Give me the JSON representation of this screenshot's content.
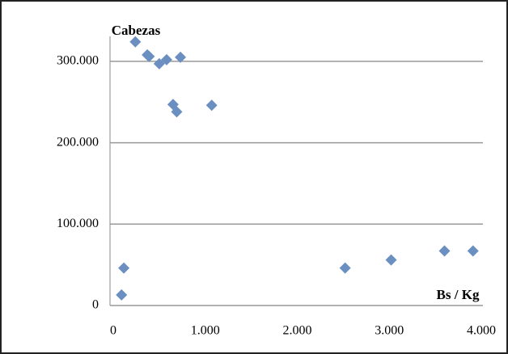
{
  "chart_data": {
    "type": "scatter",
    "x_label": "Bs / Kg",
    "y_label": "Cabezas",
    "series": [
      {
        "name": "Cabezas",
        "color": "#6a8fc0",
        "x": [
          90,
          115,
          240,
          370,
          390,
          500,
          580,
          730,
          650,
          690,
          1070,
          2520,
          3020,
          3600,
          3910
        ],
        "values": [
          13000,
          46000,
          324000,
          308000,
          306000,
          297000,
          302000,
          305000,
          247000,
          238000,
          246000,
          46000,
          56000,
          67000,
          67000
        ]
      }
    ],
    "xlim": [
      0,
      4000
    ],
    "xticks": [
      0,
      {
        "value": 1000,
        "label": "1.000"
      },
      {
        "value": 2000,
        "label": "2.000"
      },
      {
        "value": 3000,
        "label": "3.000"
      },
      {
        "value": 4000,
        "label": "4.000"
      }
    ],
    "ylim": [
      0,
      330000
    ],
    "yticks": [
      0,
      {
        "value": 100000,
        "label": "100.000"
      },
      {
        "value": 200000,
        "label": "200.000"
      },
      {
        "value": 300000,
        "label": "300.000"
      }
    ],
    "grid": true
  }
}
